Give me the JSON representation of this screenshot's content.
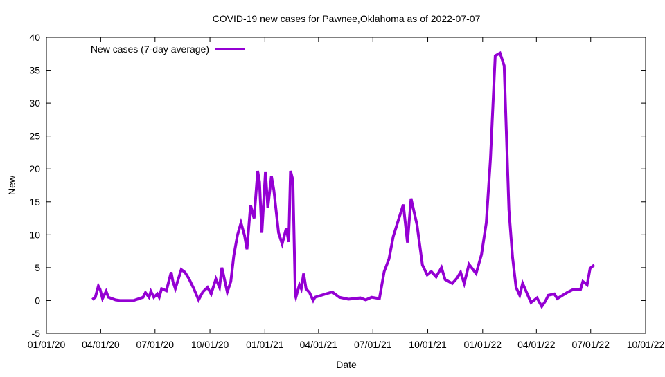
{
  "chart_data": {
    "type": "line",
    "title": "COVID-19 new cases for Pawnee,Oklahoma as of 2022-07-07",
    "xlabel": "Date",
    "ylabel": "New",
    "x_units": "days since 2020-01-01",
    "xlim": [
      0,
      1004
    ],
    "ylim": [
      -5,
      40
    ],
    "yticks": [
      -5,
      0,
      5,
      10,
      15,
      20,
      25,
      30,
      35,
      40
    ],
    "xticks": [
      {
        "day": 0,
        "label": "01/01/20"
      },
      {
        "day": 91,
        "label": "04/01/20"
      },
      {
        "day": 182,
        "label": "07/01/20"
      },
      {
        "day": 274,
        "label": "10/01/20"
      },
      {
        "day": 366,
        "label": "01/01/21"
      },
      {
        "day": 456,
        "label": "04/01/21"
      },
      {
        "day": 547,
        "label": "07/01/21"
      },
      {
        "day": 639,
        "label": "10/01/21"
      },
      {
        "day": 731,
        "label": "01/01/22"
      },
      {
        "day": 821,
        "label": "04/01/22"
      },
      {
        "day": 912,
        "label": "07/01/22"
      },
      {
        "day": 1004,
        "label": "10/01/22"
      }
    ],
    "grid": false,
    "legend_position": "top-left",
    "series": [
      {
        "name": "New cases (7-day average)",
        "color": "#9400d3",
        "points": [
          [
            77,
            0.15
          ],
          [
            82,
            0.5
          ],
          [
            87,
            2.2
          ],
          [
            90,
            1.7
          ],
          [
            94,
            0.3
          ],
          [
            100,
            1.4
          ],
          [
            104,
            0.5
          ],
          [
            116,
            0.1
          ],
          [
            123,
            0.0
          ],
          [
            146,
            0.0
          ],
          [
            162,
            0.5
          ],
          [
            166,
            1.2
          ],
          [
            172,
            0.5
          ],
          [
            175,
            1.4
          ],
          [
            180,
            0.5
          ],
          [
            186,
            1.0
          ],
          [
            189,
            0.5
          ],
          [
            193,
            1.8
          ],
          [
            201,
            1.5
          ],
          [
            209,
            4.3
          ],
          [
            212,
            2.9
          ],
          [
            216,
            1.8
          ],
          [
            226,
            4.7
          ],
          [
            232,
            4.3
          ],
          [
            239,
            3.3
          ],
          [
            247,
            1.8
          ],
          [
            255,
            0.1
          ],
          [
            262,
            1.3
          ],
          [
            270,
            2.0
          ],
          [
            276,
            1.0
          ],
          [
            284,
            3.3
          ],
          [
            290,
            2.0
          ],
          [
            294,
            5.0
          ],
          [
            303,
            1.3
          ],
          [
            309,
            2.9
          ],
          [
            314,
            6.8
          ],
          [
            320,
            9.9
          ],
          [
            326,
            11.8
          ],
          [
            332,
            9.9
          ],
          [
            336,
            7.8
          ],
          [
            342,
            14.5
          ],
          [
            348,
            12.5
          ],
          [
            354,
            19.7
          ],
          [
            357,
            18.0
          ],
          [
            361,
            10.3
          ],
          [
            367,
            19.6
          ],
          [
            371,
            14.1
          ],
          [
            377,
            18.9
          ],
          [
            381,
            16.8
          ],
          [
            389,
            10.3
          ],
          [
            395,
            8.6
          ],
          [
            402,
            11.0
          ],
          [
            406,
            8.9
          ],
          [
            409,
            19.7
          ],
          [
            413,
            18.3
          ],
          [
            417,
            0.8
          ],
          [
            418,
            0.5
          ],
          [
            424,
            2.4
          ],
          [
            427,
            1.8
          ],
          [
            431,
            4.1
          ],
          [
            435,
            1.8
          ],
          [
            441,
            1.2
          ],
          [
            447,
            0.0
          ],
          [
            450,
            0.5
          ],
          [
            468,
            1.0
          ],
          [
            479,
            1.3
          ],
          [
            491,
            0.5
          ],
          [
            506,
            0.2
          ],
          [
            526,
            0.4
          ],
          [
            535,
            0.1
          ],
          [
            545,
            0.5
          ],
          [
            558,
            0.3
          ],
          [
            566,
            4.4
          ],
          [
            574,
            6.3
          ],
          [
            581,
            9.7
          ],
          [
            590,
            12.3
          ],
          [
            598,
            14.6
          ],
          [
            605,
            8.8
          ],
          [
            611,
            15.5
          ],
          [
            621,
            11.5
          ],
          [
            630,
            5.4
          ],
          [
            638,
            3.9
          ],
          [
            645,
            4.4
          ],
          [
            653,
            3.6
          ],
          [
            662,
            5.0
          ],
          [
            668,
            3.2
          ],
          [
            680,
            2.6
          ],
          [
            688,
            3.4
          ],
          [
            694,
            4.3
          ],
          [
            700,
            2.6
          ],
          [
            708,
            5.5
          ],
          [
            720,
            4.1
          ],
          [
            729,
            7.0
          ],
          [
            737,
            11.8
          ],
          [
            744,
            21.5
          ],
          [
            752,
            37.2
          ],
          [
            760,
            37.6
          ],
          [
            767,
            35.7
          ],
          [
            775,
            13.8
          ],
          [
            781,
            6.6
          ],
          [
            787,
            2.0
          ],
          [
            793,
            0.8
          ],
          [
            798,
            2.6
          ],
          [
            812,
            -0.3
          ],
          [
            822,
            0.4
          ],
          [
            830,
            -0.9
          ],
          [
            836,
            -0.1
          ],
          [
            841,
            0.8
          ],
          [
            851,
            1.0
          ],
          [
            856,
            0.3
          ],
          [
            865,
            0.8
          ],
          [
            874,
            1.3
          ],
          [
            883,
            1.7
          ],
          [
            895,
            1.7
          ],
          [
            899,
            2.9
          ],
          [
            906,
            2.4
          ],
          [
            911,
            4.9
          ],
          [
            918,
            5.4
          ]
        ]
      }
    ]
  }
}
